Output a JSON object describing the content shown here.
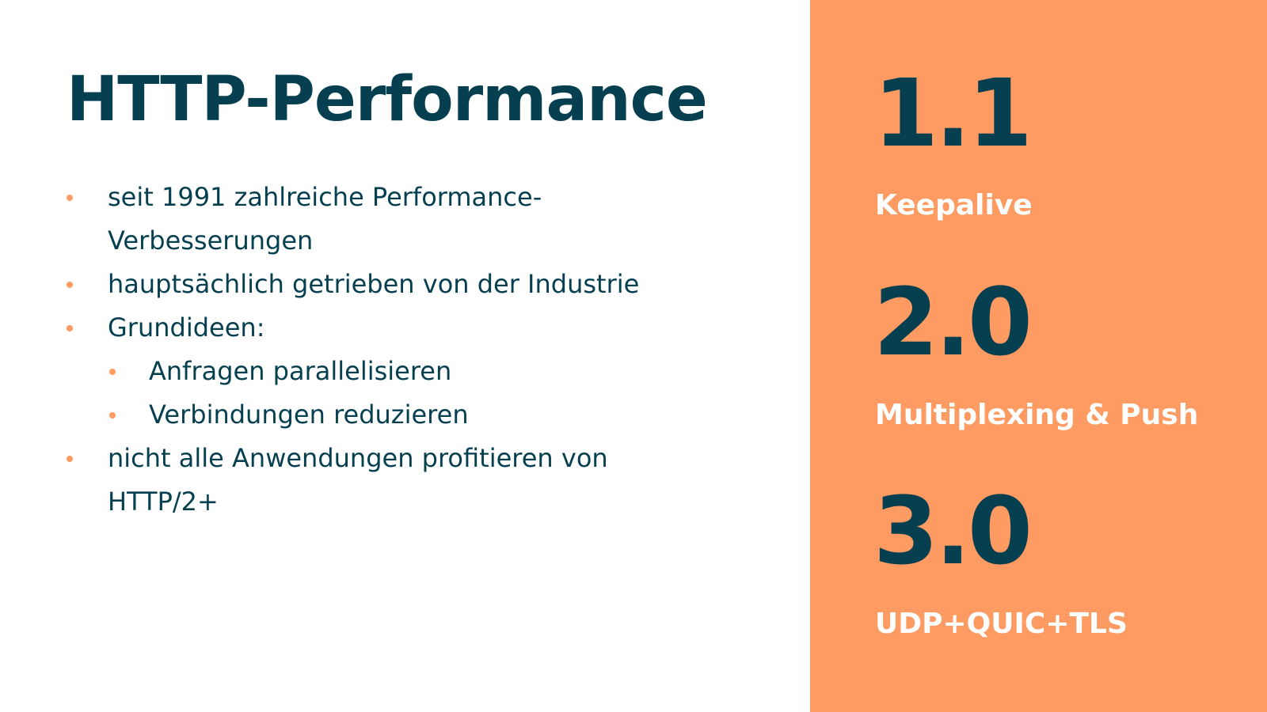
{
  "slide": {
    "title": "HTTP-Performance",
    "bullets": [
      {
        "level": 1,
        "lines": [
          "seit 1991 zahlreiche Performance-",
          "Verbesserungen"
        ]
      },
      {
        "level": 1,
        "lines": [
          "hauptsächlich getrieben von der Industrie"
        ]
      },
      {
        "level": 1,
        "lines": [
          "Grundideen:"
        ]
      },
      {
        "level": 2,
        "lines": [
          "Anfragen parallelisieren"
        ]
      },
      {
        "level": 2,
        "lines": [
          "Verbindungen reduzieren"
        ]
      },
      {
        "level": 1,
        "lines": [
          "nicht alle Anwendungen profitieren von",
          "HTTP/2+"
        ]
      }
    ],
    "versions": [
      {
        "number": "1.1",
        "feature": "Keepalive"
      },
      {
        "number": "2.0",
        "feature": "Multiplexing & Push"
      },
      {
        "number": "3.0",
        "feature": "UDP+QUIC+TLS"
      }
    ]
  },
  "colors": {
    "primary": "#053f50",
    "accent": "#fd9b63",
    "background": "#ffffff",
    "feature_text": "#ffffff"
  }
}
